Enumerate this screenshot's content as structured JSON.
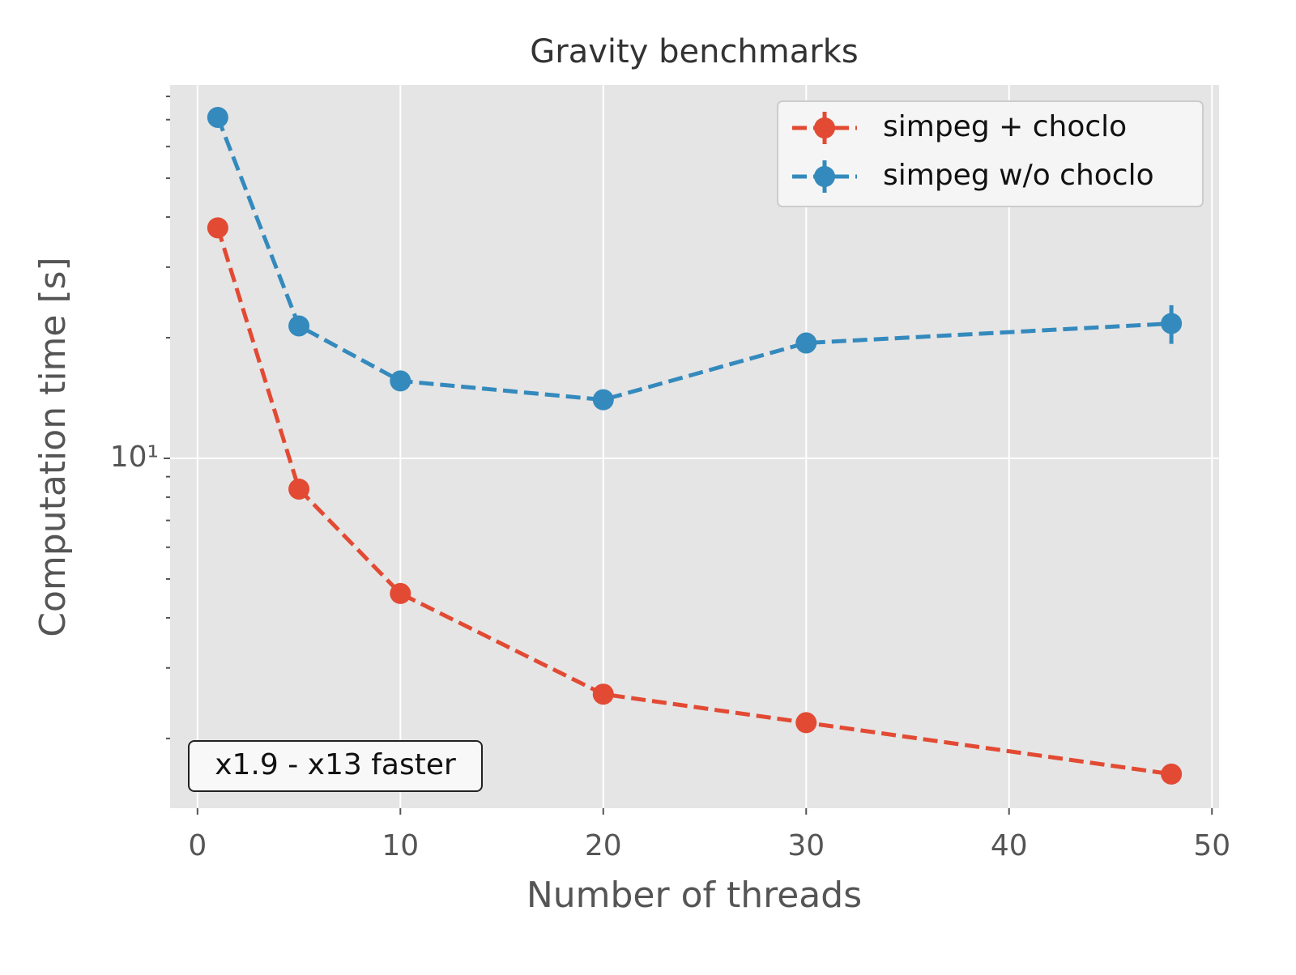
{
  "chart_data": {
    "type": "line",
    "title": "Gravity benchmarks",
    "xlabel": "Number of threads",
    "ylabel": "Computation time [s]",
    "x": [
      1,
      5,
      10,
      20,
      30,
      48
    ],
    "series": [
      {
        "name": "simpeg + choclo",
        "color": "#E24A33",
        "values": [
          37.6,
          8.38,
          4.6,
          2.58,
          2.19,
          1.63
        ],
        "errors": [
          0,
          0,
          0,
          0,
          0,
          0
        ]
      },
      {
        "name": "simpeg w/o choclo",
        "color": "#348ABD",
        "values": [
          70.9,
          21.4,
          15.6,
          14.0,
          19.4,
          21.7
        ],
        "errors": [
          0,
          0,
          0,
          0,
          0,
          2.4
        ]
      }
    ],
    "xlim": [
      -1.35,
      50.35
    ],
    "xticks": [
      0,
      10,
      20,
      30,
      40,
      50
    ],
    "ylim": [
      1.34,
      85.4
    ],
    "ylog": true,
    "yticks": [
      {
        "value": 10,
        "label": "10¹"
      }
    ],
    "yminorticks": [
      2,
      3,
      4,
      5,
      6,
      7,
      8,
      9,
      20,
      30,
      40,
      50,
      60,
      70,
      80
    ],
    "grid": true,
    "legend": "upper right",
    "annotation": "x1.9 - x13 faster"
  }
}
